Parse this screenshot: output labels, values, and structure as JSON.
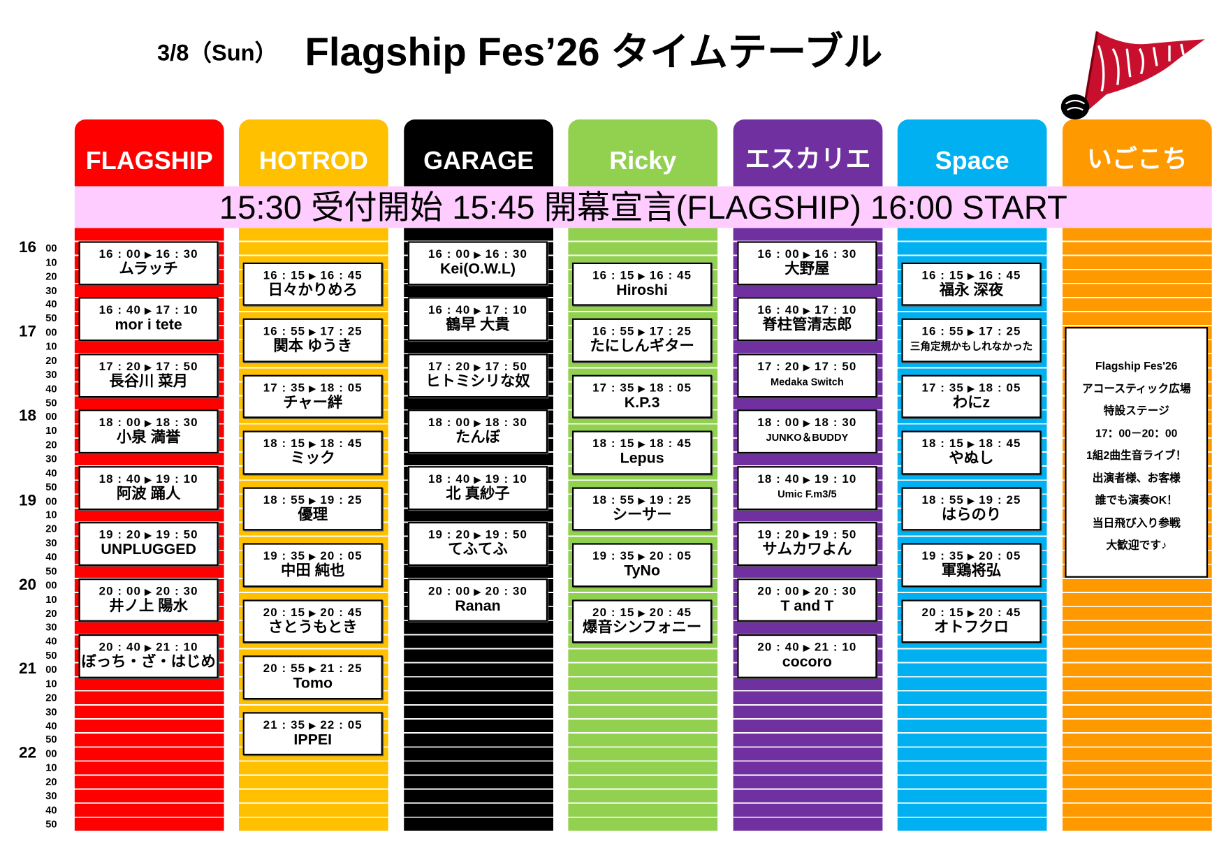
{
  "header": {
    "date": "3/8（Sun）",
    "title": "Flagship Fes’26 タイムテーブル",
    "logo_text": "Flagship Fes"
  },
  "banner": "15:30 受付開始  15:45 開幕宣言(FLAGSHIP) 16:00 START",
  "axis": {
    "hours": [
      "16",
      "17",
      "18",
      "19",
      "20",
      "21",
      "22"
    ],
    "minutes": [
      "00",
      "10",
      "20",
      "30",
      "40",
      "50"
    ]
  },
  "stages": [
    {
      "name": "FLAGSHIP",
      "color": "#ff0000",
      "performances": [
        {
          "start": "16 : 00",
          "end": "16 : 30",
          "name": "ムラッチ"
        },
        {
          "start": "16 : 40",
          "end": "17 : 10",
          "name": "mor i tete"
        },
        {
          "start": "17 : 20",
          "end": "17 : 50",
          "name": "長谷川 菜月"
        },
        {
          "start": "18 : 00",
          "end": "18 : 30",
          "name": "小泉 満誉"
        },
        {
          "start": "18 : 40",
          "end": "19 : 10",
          "name": "阿波 踊人"
        },
        {
          "start": "19 : 20",
          "end": "19 : 50",
          "name": "UNPLUGGED"
        },
        {
          "start": "20 : 00",
          "end": "20 : 30",
          "name": "井ノ上 陽水"
        },
        {
          "start": "20 : 40",
          "end": "21 : 10",
          "name": "ぼっち・ざ・はじめ"
        }
      ]
    },
    {
      "name": "HOTROD",
      "color": "#ffc000",
      "performances": [
        {
          "start": "16 : 15",
          "end": "16 : 45",
          "name": "日々かりめろ"
        },
        {
          "start": "16 : 55",
          "end": "17 : 25",
          "name": "関本 ゆうき"
        },
        {
          "start": "17 : 35",
          "end": "18 : 05",
          "name": "チャー絆"
        },
        {
          "start": "18 : 15",
          "end": "18 : 45",
          "name": "ミック"
        },
        {
          "start": "18 : 55",
          "end": "19 : 25",
          "name": "優理"
        },
        {
          "start": "19 : 35",
          "end": "20 : 05",
          "name": "中田 純也"
        },
        {
          "start": "20 : 15",
          "end": "20 : 45",
          "name": "さとうもとき"
        },
        {
          "start": "20 : 55",
          "end": "21 : 25",
          "name": "Tomo"
        },
        {
          "start": "21 : 35",
          "end": "22 : 05",
          "name": "IPPEI"
        }
      ]
    },
    {
      "name": "GARAGE",
      "color": "#000000",
      "performances": [
        {
          "start": "16 : 00",
          "end": "16 : 30",
          "name": "Kei(O.W.L)"
        },
        {
          "start": "16 : 40",
          "end": "17 : 10",
          "name": "鶴早 大貴"
        },
        {
          "start": "17 : 20",
          "end": "17 : 50",
          "name": "ヒトミシリな奴"
        },
        {
          "start": "18 : 00",
          "end": "18 : 30",
          "name": "たんぼ"
        },
        {
          "start": "18 : 40",
          "end": "19 : 10",
          "name": "北 真紗子"
        },
        {
          "start": "19 : 20",
          "end": "19 : 50",
          "name": "てふてふ"
        },
        {
          "start": "20 : 00",
          "end": "20 : 30",
          "name": "Ranan"
        }
      ]
    },
    {
      "name": "Ricky",
      "color": "#92d050",
      "performances": [
        {
          "start": "16 : 15",
          "end": "16 : 45",
          "name": "Hiroshi"
        },
        {
          "start": "16 : 55",
          "end": "17 : 25",
          "name": "たにしんギター"
        },
        {
          "start": "17 : 35",
          "end": "18 : 05",
          "name": "K.P.3"
        },
        {
          "start": "18 : 15",
          "end": "18 : 45",
          "name": "Lepus"
        },
        {
          "start": "18 : 55",
          "end": "19 : 25",
          "name": "シーサー"
        },
        {
          "start": "19 : 35",
          "end": "20 : 05",
          "name": "TyNo"
        },
        {
          "start": "20 : 15",
          "end": "20 : 45",
          "name": "爆音シンフォニー"
        }
      ]
    },
    {
      "name": "エスカリエ",
      "color": "#7030a0",
      "performances": [
        {
          "start": "16 : 00",
          "end": "16 : 30",
          "name": "大野屋"
        },
        {
          "start": "16 : 40",
          "end": "17 : 10",
          "name": "脊柱管清志郎"
        },
        {
          "start": "17 : 20",
          "end": "17 : 50",
          "name": "Medaka Switch"
        },
        {
          "start": "18 : 00",
          "end": "18 : 30",
          "name": "JUNKO＆BUDDY"
        },
        {
          "start": "18 : 40",
          "end": "19 : 10",
          "name": "Umic F.m3/5"
        },
        {
          "start": "19 : 20",
          "end": "19 : 50",
          "name": "サムカワよん"
        },
        {
          "start": "20 : 00",
          "end": "20 : 30",
          "name": "T and T"
        },
        {
          "start": "20 : 40",
          "end": "21 : 10",
          "name": "cocoro"
        }
      ]
    },
    {
      "name": "Space",
      "color": "#00b0f0",
      "performances": [
        {
          "start": "16 : 15",
          "end": "16 : 45",
          "name": "福永 深夜"
        },
        {
          "start": "16 : 55",
          "end": "17 : 25",
          "name": "三角定規かもしれなかった"
        },
        {
          "start": "17 : 35",
          "end": "18 : 05",
          "name": "わにz"
        },
        {
          "start": "18 : 15",
          "end": "18 : 45",
          "name": "やぬし"
        },
        {
          "start": "18 : 55",
          "end": "19 : 25",
          "name": "はらのり"
        },
        {
          "start": "19 : 35",
          "end": "20 : 05",
          "name": "軍鶏将弘"
        },
        {
          "start": "20 : 15",
          "end": "20 : 45",
          "name": "オトフクロ"
        }
      ]
    },
    {
      "name": "いごこち",
      "color": "#ff9900",
      "performances": []
    }
  ],
  "igokochi_note": [
    "Flagship Fes'26",
    "アコースティック広場",
    "特設ステージ",
    "17：00－20：00",
    "1組2曲生音ライブ！",
    "出演者様、お客様",
    "誰でも演奏OK！",
    "当日飛び入り参戦",
    "大歓迎です♪"
  ]
}
